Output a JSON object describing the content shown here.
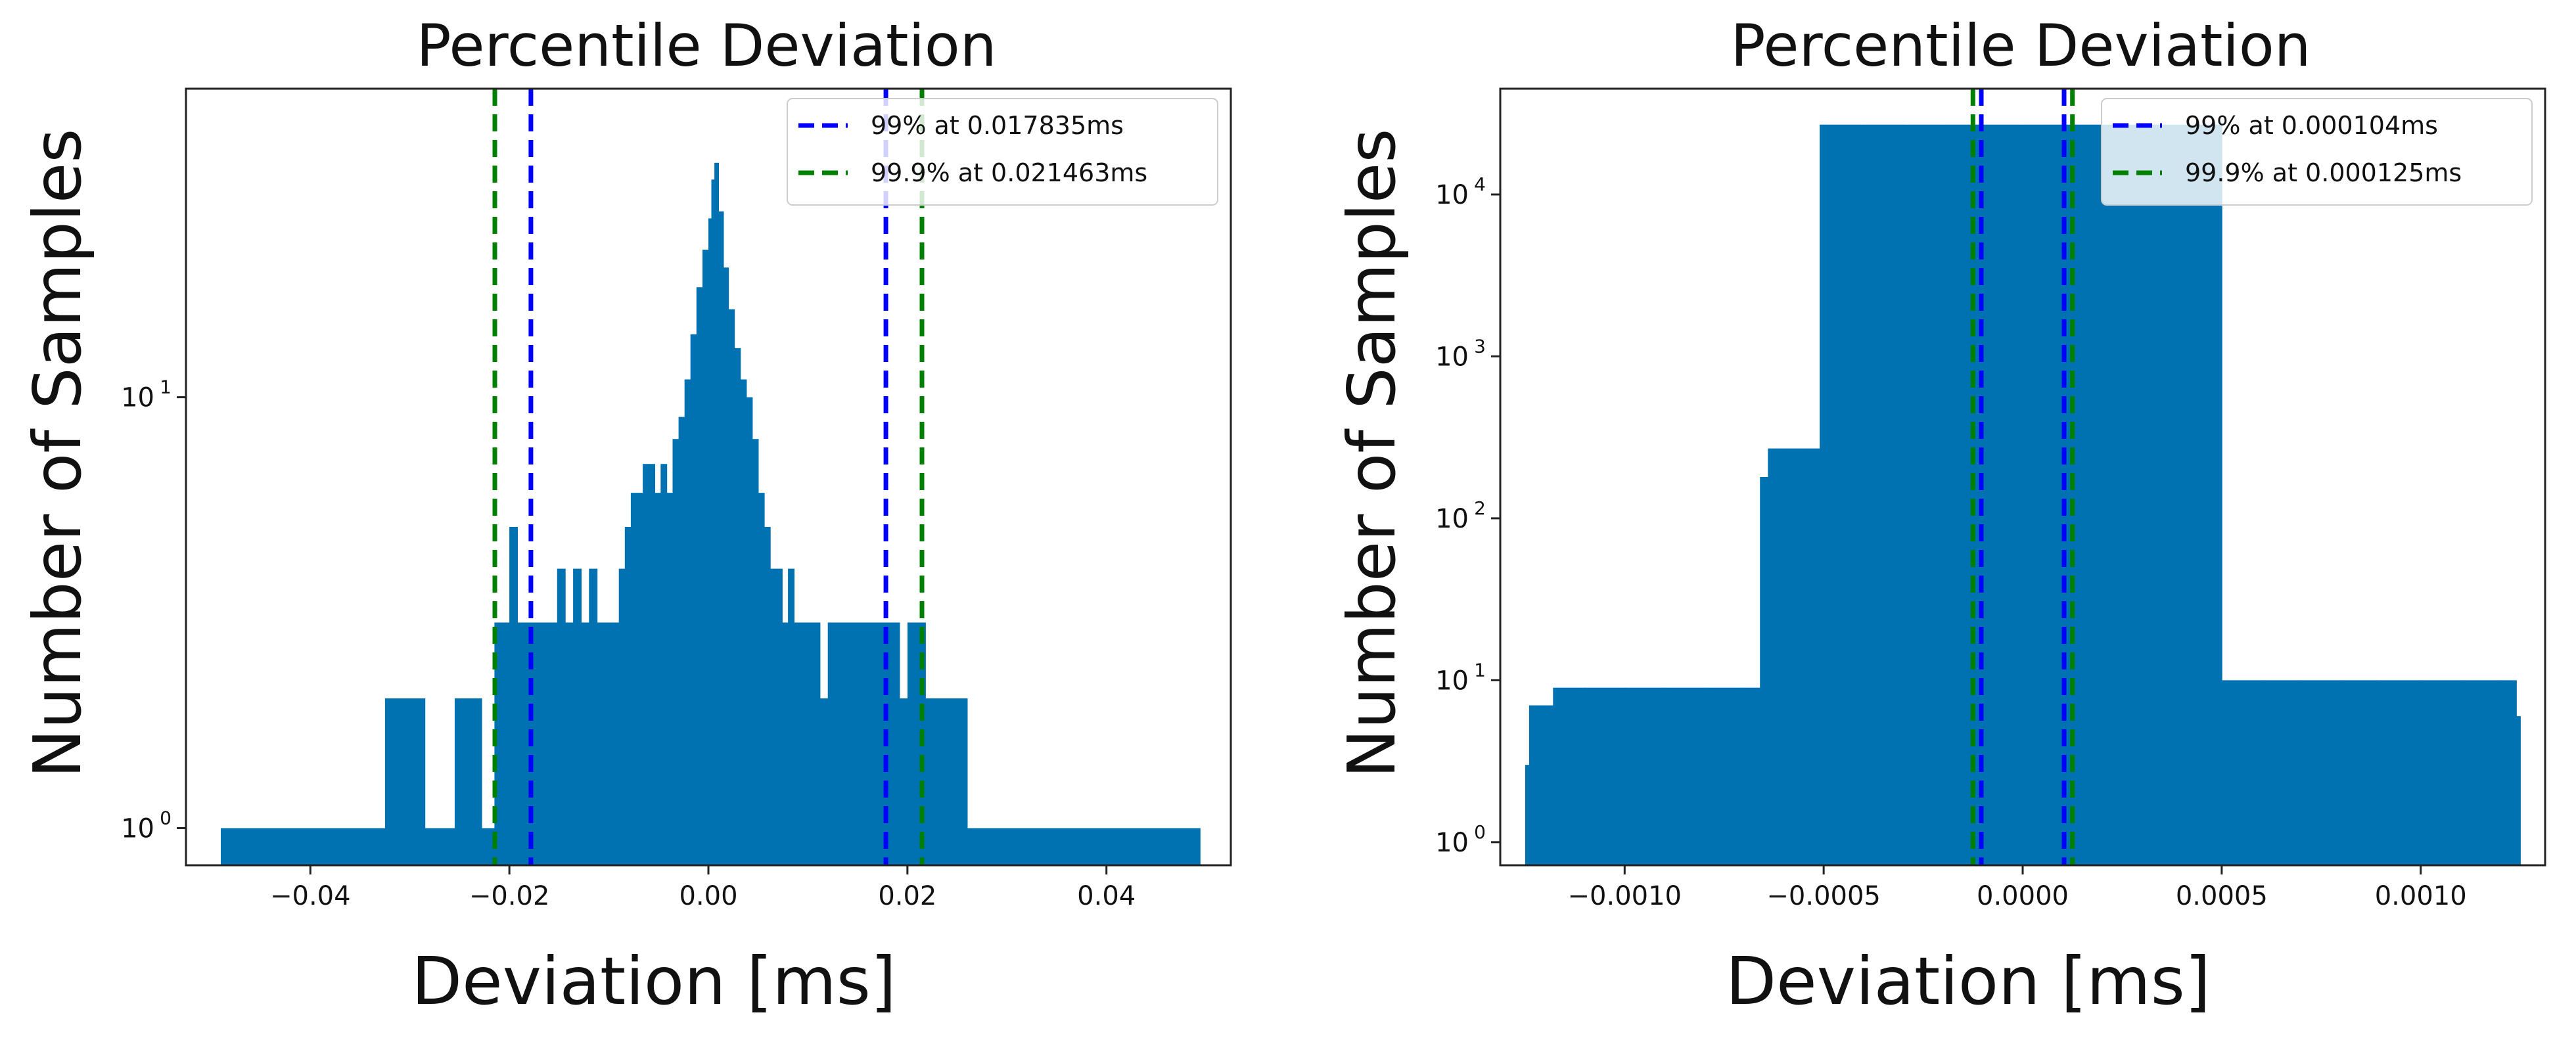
{
  "chart_data": [
    {
      "type": "histogram",
      "title": "Percentile Deviation",
      "xlabel": "Deviation [ms]",
      "ylabel": "Number of Samples",
      "xscale": "linear",
      "yscale": "log",
      "xlim": [
        -0.0525,
        0.0525
      ],
      "ylim": [
        0.82,
        52
      ],
      "xticks": [
        {
          "value": -0.04,
          "label": "−0.04"
        },
        {
          "value": -0.02,
          "label": "−0.02"
        },
        {
          "value": 0.0,
          "label": "0.00"
        },
        {
          "value": 0.02,
          "label": "0.02"
        },
        {
          "value": 0.04,
          "label": "0.04"
        }
      ],
      "yticks": [
        {
          "value": 1,
          "base": "10",
          "exp": "0"
        },
        {
          "value": 10,
          "base": "10",
          "exp": "1"
        }
      ],
      "bar_color": "#0072b2",
      "bars": [
        [
          -0.049,
          1
        ],
        [
          -0.045,
          1
        ],
        [
          -0.041,
          1
        ],
        [
          -0.037,
          1
        ],
        [
          -0.033,
          1
        ],
        [
          -0.0325,
          2
        ],
        [
          -0.031,
          2
        ],
        [
          -0.0295,
          2
        ],
        [
          -0.0285,
          1
        ],
        [
          -0.027,
          1
        ],
        [
          -0.0255,
          2
        ],
        [
          -0.024,
          2
        ],
        [
          -0.0228,
          1
        ],
        [
          -0.0215,
          3
        ],
        [
          -0.0208,
          3
        ],
        [
          -0.02,
          5
        ],
        [
          -0.0192,
          3
        ],
        [
          -0.0184,
          3
        ],
        [
          -0.0176,
          3
        ],
        [
          -0.0168,
          3
        ],
        [
          -0.016,
          3
        ],
        [
          -0.0152,
          4
        ],
        [
          -0.0144,
          3
        ],
        [
          -0.0136,
          4
        ],
        [
          -0.0128,
          3
        ],
        [
          -0.012,
          4
        ],
        [
          -0.0112,
          3
        ],
        [
          -0.0104,
          3
        ],
        [
          -0.0096,
          3
        ],
        [
          -0.009,
          4
        ],
        [
          -0.0084,
          5
        ],
        [
          -0.0078,
          6
        ],
        [
          -0.0072,
          6
        ],
        [
          -0.0066,
          7
        ],
        [
          -0.006,
          7
        ],
        [
          -0.0054,
          6
        ],
        [
          -0.0048,
          7
        ],
        [
          -0.0042,
          6
        ],
        [
          -0.0036,
          8
        ],
        [
          -0.003,
          9
        ],
        [
          -0.0024,
          11
        ],
        [
          -0.0018,
          14
        ],
        [
          -0.0012,
          18
        ],
        [
          -0.0006,
          22
        ],
        [
          0.0,
          26
        ],
        [
          0.0003,
          32
        ],
        [
          0.0006,
          35
        ],
        [
          0.001,
          27
        ],
        [
          0.0015,
          20
        ],
        [
          0.002,
          16
        ],
        [
          0.0026,
          13
        ],
        [
          0.0032,
          11
        ],
        [
          0.0038,
          10
        ],
        [
          0.0044,
          8
        ],
        [
          0.005,
          6
        ],
        [
          0.0056,
          5
        ],
        [
          0.0062,
          4
        ],
        [
          0.0068,
          4
        ],
        [
          0.0074,
          3
        ],
        [
          0.008,
          4
        ],
        [
          0.0086,
          3
        ],
        [
          0.0092,
          3
        ],
        [
          0.0098,
          3
        ],
        [
          0.0104,
          3
        ],
        [
          0.0112,
          2
        ],
        [
          0.012,
          3
        ],
        [
          0.0128,
          3
        ],
        [
          0.0136,
          3
        ],
        [
          0.0144,
          3
        ],
        [
          0.0152,
          3
        ],
        [
          0.016,
          3
        ],
        [
          0.0168,
          3
        ],
        [
          0.0176,
          3
        ],
        [
          0.0184,
          3
        ],
        [
          0.0192,
          2
        ],
        [
          0.02,
          3
        ],
        [
          0.0208,
          3
        ],
        [
          0.0218,
          2
        ],
        [
          0.023,
          2
        ],
        [
          0.0245,
          2
        ],
        [
          0.026,
          1
        ],
        [
          0.0272,
          1
        ],
        [
          0.0282,
          1
        ],
        [
          0.029,
          1
        ],
        [
          0.0298,
          1
        ],
        [
          0.031,
          1
        ],
        [
          0.032,
          1
        ],
        [
          0.0335,
          1
        ],
        [
          0.035,
          1
        ],
        [
          0.0365,
          1
        ],
        [
          0.038,
          1
        ],
        [
          0.0395,
          1
        ],
        [
          0.041,
          1
        ],
        [
          0.042,
          1
        ],
        [
          0.043,
          1
        ],
        [
          0.044,
          1
        ],
        [
          0.045,
          1
        ],
        [
          0.046,
          1
        ],
        [
          0.047,
          1
        ],
        [
          0.048,
          1
        ],
        [
          0.049,
          1
        ]
      ],
      "vlines": [
        {
          "x": -0.021463,
          "color": "#008000"
        },
        {
          "x": -0.017835,
          "color": "#0000ff"
        },
        {
          "x": 0.017835,
          "color": "#0000ff"
        },
        {
          "x": 0.021463,
          "color": "#008000"
        }
      ],
      "legend": {
        "location": "top-right",
        "entries": [
          {
            "label": "99% at 0.017835ms",
            "color": "#0000ff"
          },
          {
            "label": "99.9% at 0.021463ms",
            "color": "#008000"
          }
        ]
      }
    },
    {
      "type": "histogram",
      "title": "Percentile Deviation",
      "xlabel": "Deviation [ms]",
      "ylabel": "Number of Samples",
      "xscale": "linear",
      "yscale": "log",
      "xlim": [
        -0.0013125,
        0.0013125
      ],
      "ylim": [
        0.72,
        45000
      ],
      "xticks": [
        {
          "value": -0.001,
          "label": "−0.0010"
        },
        {
          "value": -0.0005,
          "label": "−0.0005"
        },
        {
          "value": 0.0,
          "label": "0.0000"
        },
        {
          "value": 0.0005,
          "label": "0.0005"
        },
        {
          "value": 0.001,
          "label": "0.0010"
        }
      ],
      "yticks": [
        {
          "value": 1,
          "base": "10",
          "exp": "0"
        },
        {
          "value": 10,
          "base": "10",
          "exp": "1"
        },
        {
          "value": 100,
          "base": "10",
          "exp": "2"
        },
        {
          "value": 1000,
          "base": "10",
          "exp": "3"
        },
        {
          "value": 10000,
          "base": "10",
          "exp": "4"
        }
      ],
      "bar_color": "#0072b2",
      "bars": [
        [
          -0.00125,
          3
        ],
        [
          -0.00124,
          7
        ],
        [
          -0.00121,
          7
        ],
        [
          -0.00118,
          9
        ],
        [
          -0.0011,
          9
        ],
        [
          -0.001,
          9
        ],
        [
          -0.0009,
          9
        ],
        [
          -0.0008,
          9
        ],
        [
          -0.0007,
          9
        ],
        [
          -0.00066,
          180
        ],
        [
          -0.00064,
          270
        ],
        [
          -0.0006,
          270
        ],
        [
          -0.00055,
          270
        ],
        [
          -0.00051,
          27000
        ],
        [
          -0.0004,
          27000
        ],
        [
          -0.0003,
          27000
        ],
        [
          -0.0002,
          27000
        ],
        [
          -0.0001,
          27000
        ],
        [
          0.0,
          27000
        ],
        [
          0.0001,
          27000
        ],
        [
          0.0002,
          27000
        ],
        [
          0.0003,
          27000
        ],
        [
          0.0004,
          27000
        ],
        [
          0.0005,
          10
        ],
        [
          0.0006,
          10
        ],
        [
          0.0007,
          10
        ],
        [
          0.0008,
          10
        ],
        [
          0.0009,
          10
        ],
        [
          0.001,
          10
        ],
        [
          0.0011,
          10
        ],
        [
          0.0012,
          10
        ],
        [
          0.00124,
          6
        ]
      ],
      "vlines": [
        {
          "x": -0.000125,
          "color": "#008000"
        },
        {
          "x": -0.000104,
          "color": "#0000ff"
        },
        {
          "x": 0.000104,
          "color": "#0000ff"
        },
        {
          "x": 0.000125,
          "color": "#008000"
        }
      ],
      "legend": {
        "location": "top-right",
        "entries": [
          {
            "label": "99% at 0.000104ms",
            "color": "#0000ff"
          },
          {
            "label": "99.9% at 0.000125ms",
            "color": "#008000"
          }
        ]
      }
    }
  ]
}
